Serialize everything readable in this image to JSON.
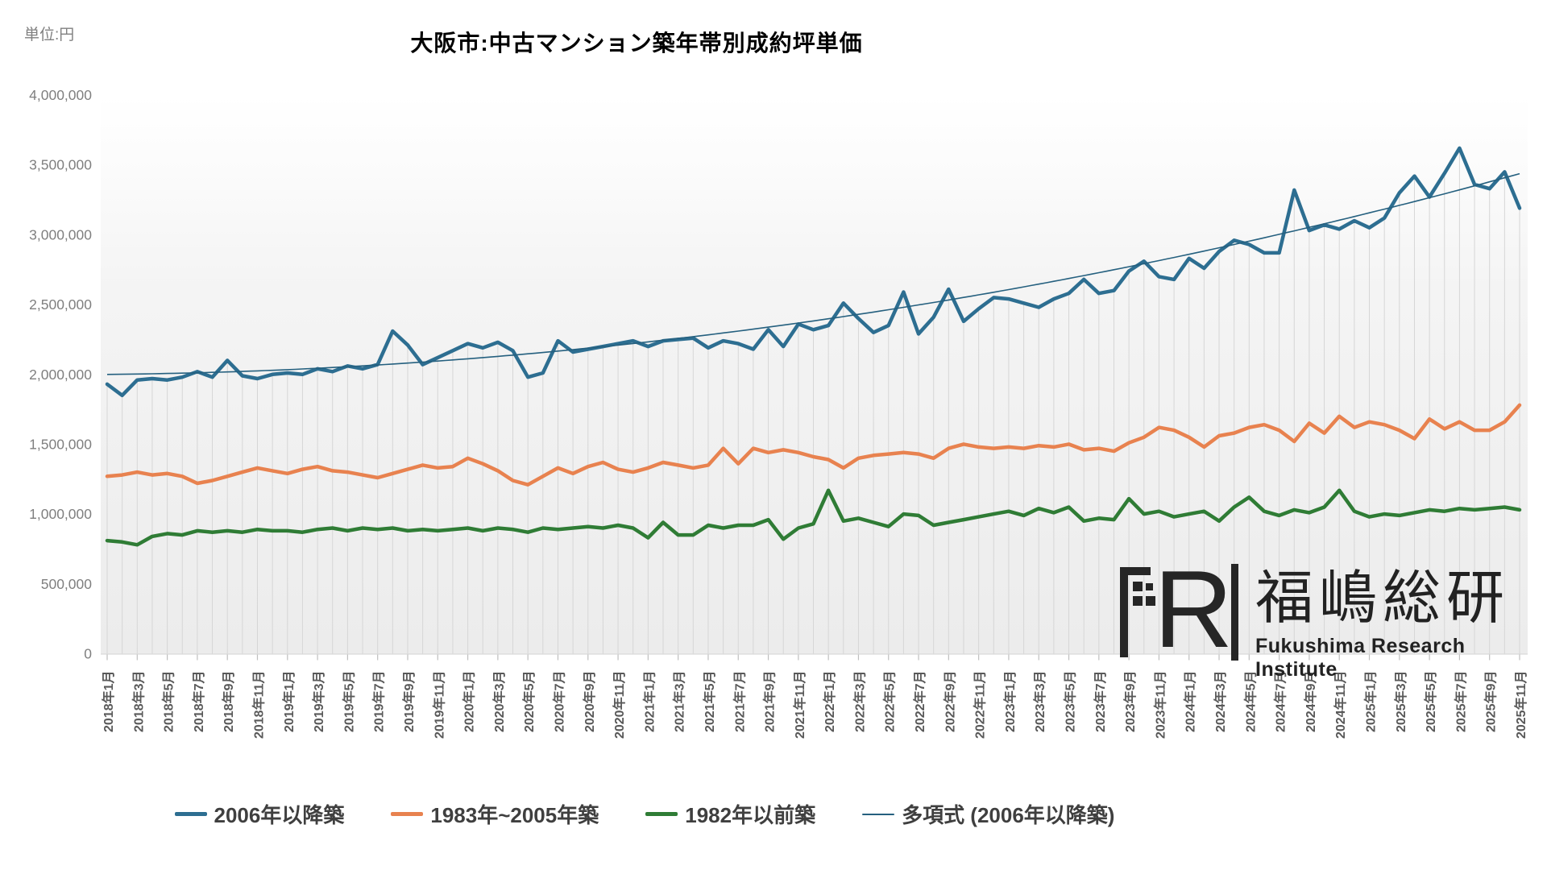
{
  "unit_label": "単位:円",
  "title": "大阪市:中古マンション築年帯別成約坪単価",
  "y_axis": {
    "tick_labels": [
      "0",
      "500,000",
      "1,000,000",
      "1,500,000",
      "2,000,000",
      "2,500,000",
      "3,000,000",
      "3,500,000",
      "4,000,000"
    ],
    "min": 0,
    "max": 4000000,
    "step": 500000
  },
  "x_axis": {
    "labels": [
      "2018年1月",
      "2018年3月",
      "2018年5月",
      "2018年7月",
      "2018年9月",
      "2018年11月",
      "2019年1月",
      "2019年3月",
      "2019年5月",
      "2019年7月",
      "2019年9月",
      "2019年11月",
      "2020年1月",
      "2020年3月",
      "2020年5月",
      "2020年7月",
      "2020年9月",
      "2020年11月",
      "2021年1月",
      "2021年3月",
      "2021年5月",
      "2021年7月",
      "2021年9月",
      "2021年11月",
      "2022年1月",
      "2022年3月",
      "2022年5月",
      "2022年7月",
      "2022年9月",
      "2022年11月",
      "2023年1月",
      "2023年3月",
      "2023年5月",
      "2023年7月",
      "2023年9月",
      "2023年11月",
      "2024年1月",
      "2024年3月",
      "2024年5月",
      "2024年7月",
      "2024年9月",
      "2024年11月",
      "2025年1月",
      "2025年3月",
      "2025年5月",
      "2025年7月",
      "2025年9月",
      "2025年11月"
    ],
    "label_every_n_points": 2
  },
  "chart_data": {
    "type": "line",
    "title": "大阪市:中古マンション築年帯別成約坪単価",
    "ylabel": "単位:円",
    "ylim": [
      0,
      4000000
    ],
    "x_monthly_range": {
      "start": "2018年1月",
      "end": "2025年11月",
      "points": 95
    },
    "grid": "vertical-drop-lines-under-first-series",
    "legend_position": "bottom",
    "series": [
      {
        "name": "2006年以降築",
        "color": "#2d6e91",
        "stroke_width": 4.5,
        "values": [
          1930000,
          1850000,
          1960000,
          1970000,
          1960000,
          1980000,
          2020000,
          1980000,
          2100000,
          1990000,
          1970000,
          2000000,
          2010000,
          2000000,
          2040000,
          2020000,
          2060000,
          2040000,
          2070000,
          2310000,
          2210000,
          2070000,
          2120000,
          2170000,
          2220000,
          2190000,
          2230000,
          2170000,
          1980000,
          2010000,
          2240000,
          2160000,
          2180000,
          2200000,
          2220000,
          2240000,
          2200000,
          2240000,
          2250000,
          2260000,
          2190000,
          2240000,
          2220000,
          2180000,
          2320000,
          2200000,
          2360000,
          2320000,
          2350000,
          2510000,
          2400000,
          2300000,
          2350000,
          2590000,
          2290000,
          2410000,
          2610000,
          2380000,
          2470000,
          2550000,
          2540000,
          2510000,
          2480000,
          2540000,
          2580000,
          2680000,
          2580000,
          2600000,
          2740000,
          2810000,
          2700000,
          2680000,
          2830000,
          2760000,
          2880000,
          2960000,
          2930000,
          2870000,
          2870000,
          3320000,
          3030000,
          3070000,
          3040000,
          3100000,
          3050000,
          3120000,
          3300000,
          3420000,
          3270000,
          3440000,
          3620000,
          3360000,
          3330000,
          3450000,
          3190000
        ]
      },
      {
        "name": "1983年~2005年築",
        "color": "#e8824f",
        "stroke_width": 4.5,
        "values": [
          1270000,
          1280000,
          1300000,
          1280000,
          1290000,
          1270000,
          1220000,
          1240000,
          1270000,
          1300000,
          1330000,
          1310000,
          1290000,
          1320000,
          1340000,
          1310000,
          1300000,
          1280000,
          1260000,
          1290000,
          1320000,
          1350000,
          1330000,
          1340000,
          1400000,
          1360000,
          1310000,
          1240000,
          1210000,
          1270000,
          1330000,
          1290000,
          1340000,
          1370000,
          1320000,
          1300000,
          1330000,
          1370000,
          1350000,
          1330000,
          1350000,
          1470000,
          1360000,
          1470000,
          1440000,
          1460000,
          1440000,
          1410000,
          1390000,
          1330000,
          1400000,
          1420000,
          1430000,
          1440000,
          1430000,
          1400000,
          1470000,
          1500000,
          1480000,
          1470000,
          1480000,
          1470000,
          1490000,
          1480000,
          1500000,
          1460000,
          1470000,
          1450000,
          1510000,
          1550000,
          1620000,
          1600000,
          1550000,
          1480000,
          1560000,
          1580000,
          1620000,
          1640000,
          1600000,
          1520000,
          1650000,
          1580000,
          1700000,
          1620000,
          1660000,
          1640000,
          1600000,
          1540000,
          1680000,
          1610000,
          1660000,
          1600000,
          1600000,
          1660000,
          1780000
        ]
      },
      {
        "name": "1982年以前築",
        "color": "#2f7c35",
        "stroke_width": 4.5,
        "values": [
          810000,
          800000,
          780000,
          840000,
          860000,
          850000,
          880000,
          870000,
          880000,
          870000,
          890000,
          880000,
          880000,
          870000,
          890000,
          900000,
          880000,
          900000,
          890000,
          900000,
          880000,
          890000,
          880000,
          890000,
          900000,
          880000,
          900000,
          890000,
          870000,
          900000,
          890000,
          900000,
          910000,
          900000,
          920000,
          900000,
          830000,
          940000,
          850000,
          850000,
          920000,
          900000,
          920000,
          920000,
          960000,
          820000,
          900000,
          930000,
          1170000,
          950000,
          970000,
          940000,
          910000,
          1000000,
          990000,
          920000,
          940000,
          960000,
          980000,
          1000000,
          1020000,
          990000,
          1040000,
          1010000,
          1050000,
          950000,
          970000,
          960000,
          1110000,
          1000000,
          1020000,
          980000,
          1000000,
          1020000,
          950000,
          1050000,
          1120000,
          1020000,
          990000,
          1030000,
          1010000,
          1050000,
          1170000,
          1020000,
          980000,
          1000000,
          990000,
          1010000,
          1030000,
          1020000,
          1040000,
          1030000,
          1040000,
          1050000,
          1030000
        ]
      }
    ],
    "trend": {
      "name": "多項式 (2006年以降築)",
      "of_series": "2006年以降築",
      "color": "#25607f",
      "stroke_width": 1.6,
      "polynomial": {
        "a": 2000000,
        "b": 1000,
        "c": 152
      },
      "start_value": 2000000,
      "end_value": 3437000
    }
  },
  "legend": {
    "items": [
      {
        "label": "2006年以降築",
        "color": "#2d6e91",
        "style": "thick"
      },
      {
        "label": "1983年~2005年築",
        "color": "#e8824f",
        "style": "thick"
      },
      {
        "label": "1982年以前築",
        "color": "#2f7c35",
        "style": "thick"
      },
      {
        "label": "多項式 (2006年以降築)",
        "color": "#25607f",
        "style": "thin"
      }
    ]
  },
  "logo": {
    "acronym": "FRI",
    "letter_r": "R",
    "name_jp": "福嶋総研",
    "name_en": "Fukushima Research Institute"
  },
  "colors": {
    "plot_bg_top": "#ffffff",
    "plot_bg_bottom": "#ececec",
    "drop_line": "#d6d6d6",
    "axis_line": "#d9d9d9",
    "tick": "#bfbfbf",
    "y_label": "#7f7f7f",
    "x_label": "#595959",
    "legend_text": "#3f3f3f"
  }
}
